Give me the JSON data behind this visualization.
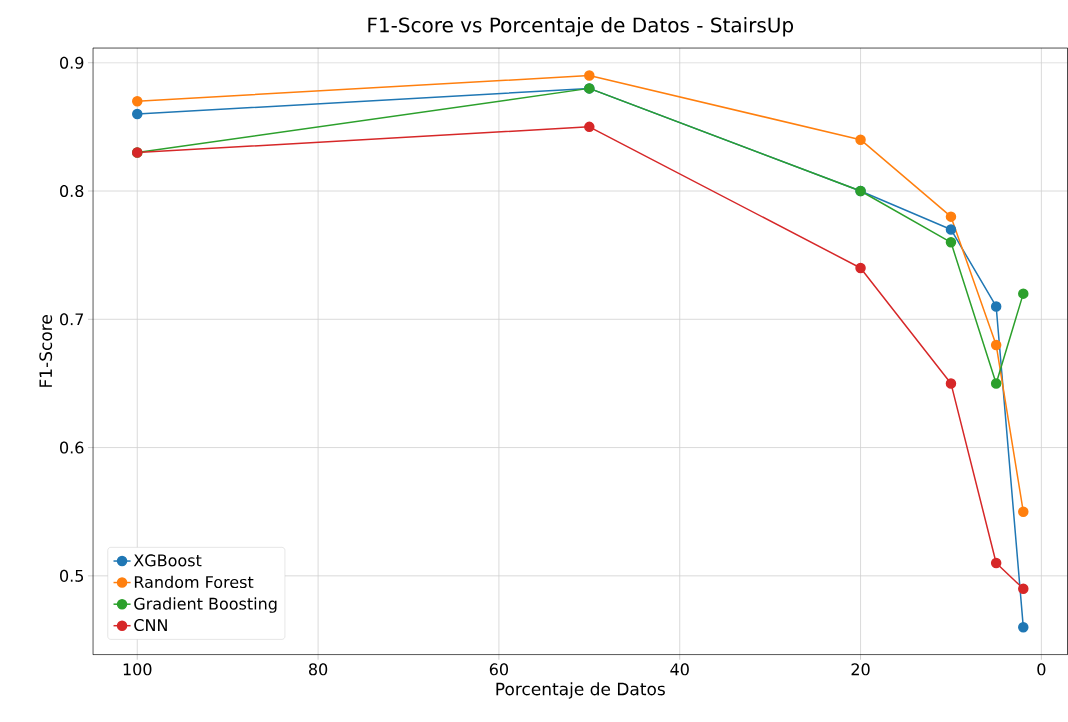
{
  "chart_data": {
    "type": "line",
    "title": "F1-Score vs Porcentaje de Datos - StairsUp",
    "xlabel": "Porcentaje de Datos",
    "ylabel": "F1-Score",
    "x": [
      100,
      50,
      20,
      10,
      5,
      2
    ],
    "series": [
      {
        "name": "XGBoost",
        "color": "#1f77b4",
        "values": [
          0.86,
          0.88,
          0.8,
          0.77,
          0.71,
          0.46
        ]
      },
      {
        "name": "Random Forest",
        "color": "#ff7f0e",
        "values": [
          0.87,
          0.89,
          0.84,
          0.78,
          0.68,
          0.55
        ]
      },
      {
        "name": "Gradient Boosting",
        "color": "#2ca02c",
        "values": [
          0.83,
          0.88,
          0.8,
          0.76,
          0.65,
          0.72
        ]
      },
      {
        "name": "CNN",
        "color": "#d62728",
        "values": [
          0.83,
          0.85,
          0.74,
          0.65,
          0.51,
          0.49
        ]
      }
    ],
    "xlim": [
      104.9,
      -2.9
    ],
    "ylim": [
      0.4385,
      0.9115
    ],
    "xticks": [
      100,
      80,
      60,
      40,
      20,
      0
    ],
    "yticks": [
      0.5,
      0.6,
      0.7,
      0.8,
      0.9
    ],
    "grid": true,
    "legend": "bottom left",
    "marker": "circle",
    "line_style": "solid"
  }
}
